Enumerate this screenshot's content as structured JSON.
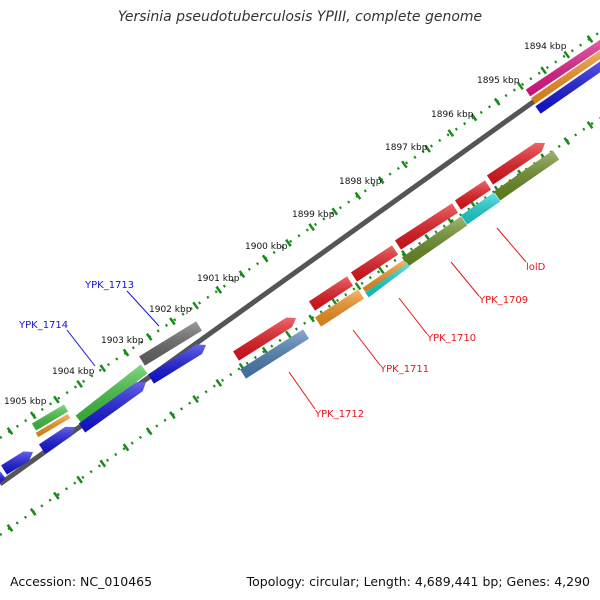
{
  "title": "Yersinia pseudotuberculosis YPIII, complete genome",
  "footer": {
    "accession": "Accession: NC_010465",
    "summary": "Topology: circular; Length: 4,689,441 bp; Genes: 4,290"
  },
  "scale_labels": [
    "1894 kbp",
    "1895 kbp",
    "1896 kbp",
    "1897 kbp",
    "1898 kbp",
    "1899 kbp",
    "1900 kbp",
    "1901 kbp",
    "1902 kbp",
    "1903 kbp",
    "1904 kbp",
    "1905 kbp"
  ],
  "gene_labels_blue": [
    "YPK_1713",
    "YPK_1714"
  ],
  "gene_labels_red": [
    "lolD",
    "YPK_1709",
    "YPK_1710",
    "YPK_1711",
    "YPK_1712"
  ],
  "colors": {
    "red": "#e8141b",
    "orange": "#f7941d",
    "green": "#3ec43e",
    "olive": "#6b8e23",
    "cyan": "#19d6d6",
    "steelblue": "#4d7fb5",
    "blue": "#1212e0",
    "gray": "#666666",
    "magenta": "#e6198a",
    "tick_green": "#1a8a1a",
    "backbone": "#888888"
  }
}
